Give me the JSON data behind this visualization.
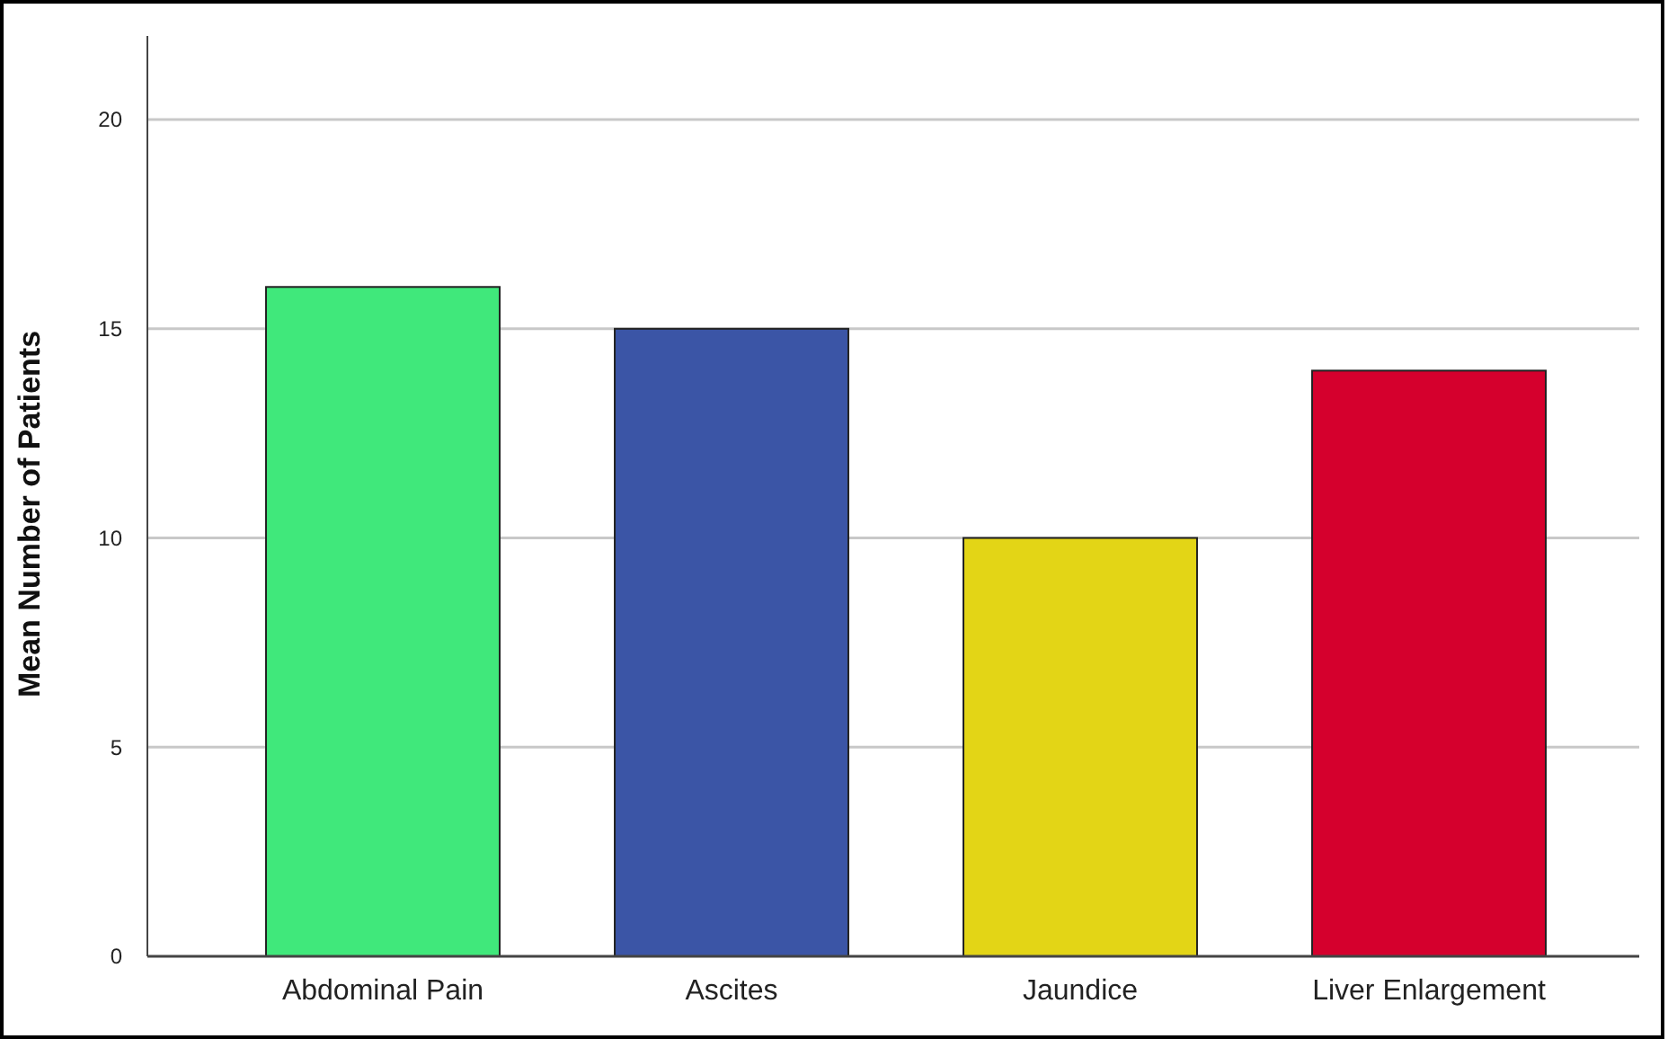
{
  "chart_data": {
    "type": "bar",
    "ylabel": "Mean Number of Patients",
    "categories": [
      "Abdominal Pain",
      "Ascites",
      "Jaundice",
      "Liver Enlargement"
    ],
    "values": [
      16,
      15,
      10,
      14
    ],
    "colors": [
      "#40e87b",
      "#3b55a6",
      "#e3d516",
      "#d5002d"
    ],
    "ylim": [
      0,
      22
    ],
    "yticks": [
      0,
      5,
      10,
      15,
      20
    ],
    "grid": "y"
  }
}
